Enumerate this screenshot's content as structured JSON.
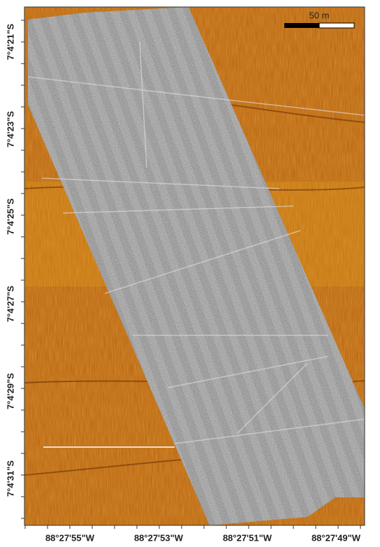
{
  "map": {
    "latitude_labels": [
      "7°4'21\"S",
      "7°4'23\"S",
      "7°4'25\"S",
      "7°4'27\"S",
      "7°4'29\"S",
      "7°4'31\"S"
    ],
    "longitude_labels": [
      "88°27'55\"W",
      "88°27'53\"W",
      "88°27'51\"W",
      "88°27'49\"W"
    ],
    "scale_bar": {
      "label": "50 m"
    }
  }
}
